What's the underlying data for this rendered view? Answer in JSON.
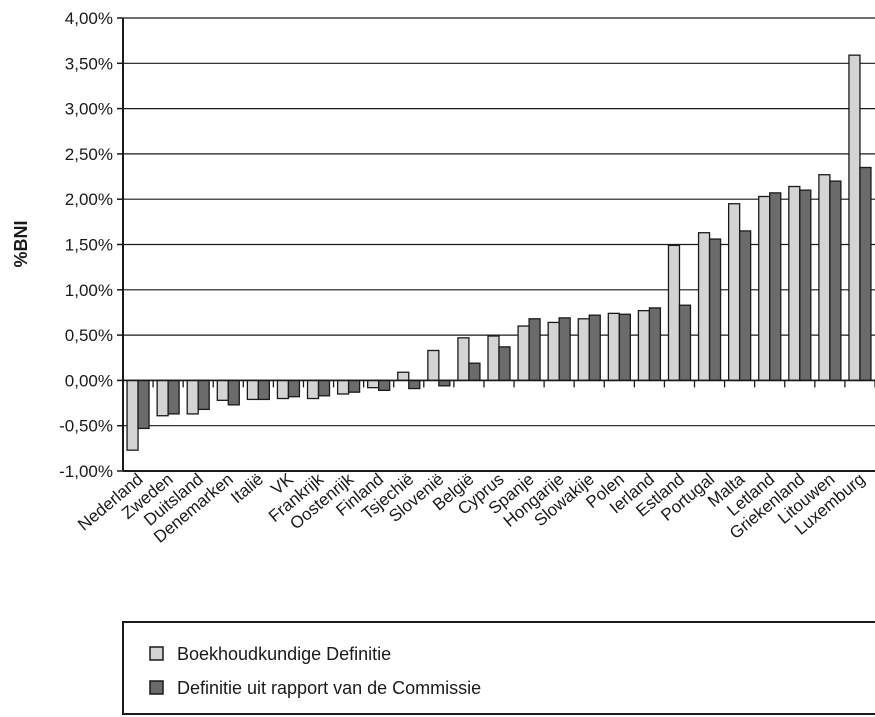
{
  "chart_data": {
    "type": "bar",
    "title": "",
    "xlabel": "",
    "ylabel": "%BNI",
    "ylim": [
      -1.0,
      4.0
    ],
    "y_ticks": [
      "-1,00%",
      "-0,50%",
      "0,00%",
      "0,50%",
      "1,00%",
      "1,50%",
      "2,00%",
      "2,50%",
      "3,00%",
      "3,50%",
      "4,00%"
    ],
    "grid": "horizontal",
    "legend_position": "bottom",
    "categories": [
      "Nederland",
      "Zweden",
      "Duitsland",
      "Denemarken",
      "Italië",
      "VK",
      "Frankrijk",
      "Oostenrijk",
      "Finland",
      "Tsjechië",
      "Slovenië",
      "België",
      "Cyprus",
      "Spanje",
      "Hongarije",
      "Slowakije",
      "Polen",
      "Ierland",
      "Estland",
      "Portugal",
      "Malta",
      "Letland",
      "Griekenland",
      "Litouwen",
      "Luxemburg"
    ],
    "series": [
      {
        "name": "Boekhoudkundige Definitie",
        "color": "#d4d4d4",
        "values": [
          -0.77,
          -0.39,
          -0.37,
          -0.22,
          -0.21,
          -0.2,
          -0.2,
          -0.15,
          -0.08,
          0.09,
          0.33,
          0.47,
          0.49,
          0.6,
          0.64,
          0.68,
          0.74,
          0.77,
          1.49,
          1.63,
          1.95,
          2.03,
          2.14,
          2.27,
          3.59
        ]
      },
      {
        "name": "Definitie uit rapport van de Commissie",
        "color": "#6b6b6b",
        "values": [
          -0.53,
          -0.37,
          -0.32,
          -0.27,
          -0.21,
          -0.18,
          -0.17,
          -0.13,
          -0.11,
          -0.09,
          -0.06,
          0.19,
          0.37,
          0.68,
          0.69,
          0.72,
          0.73,
          0.8,
          0.83,
          1.56,
          1.65,
          2.07,
          2.1,
          2.2,
          2.35
        ]
      }
    ]
  },
  "legend": {
    "items": [
      {
        "label": "Boekhoudkundige Definitie"
      },
      {
        "label": "Definitie uit rapport van de Commissie"
      }
    ]
  }
}
